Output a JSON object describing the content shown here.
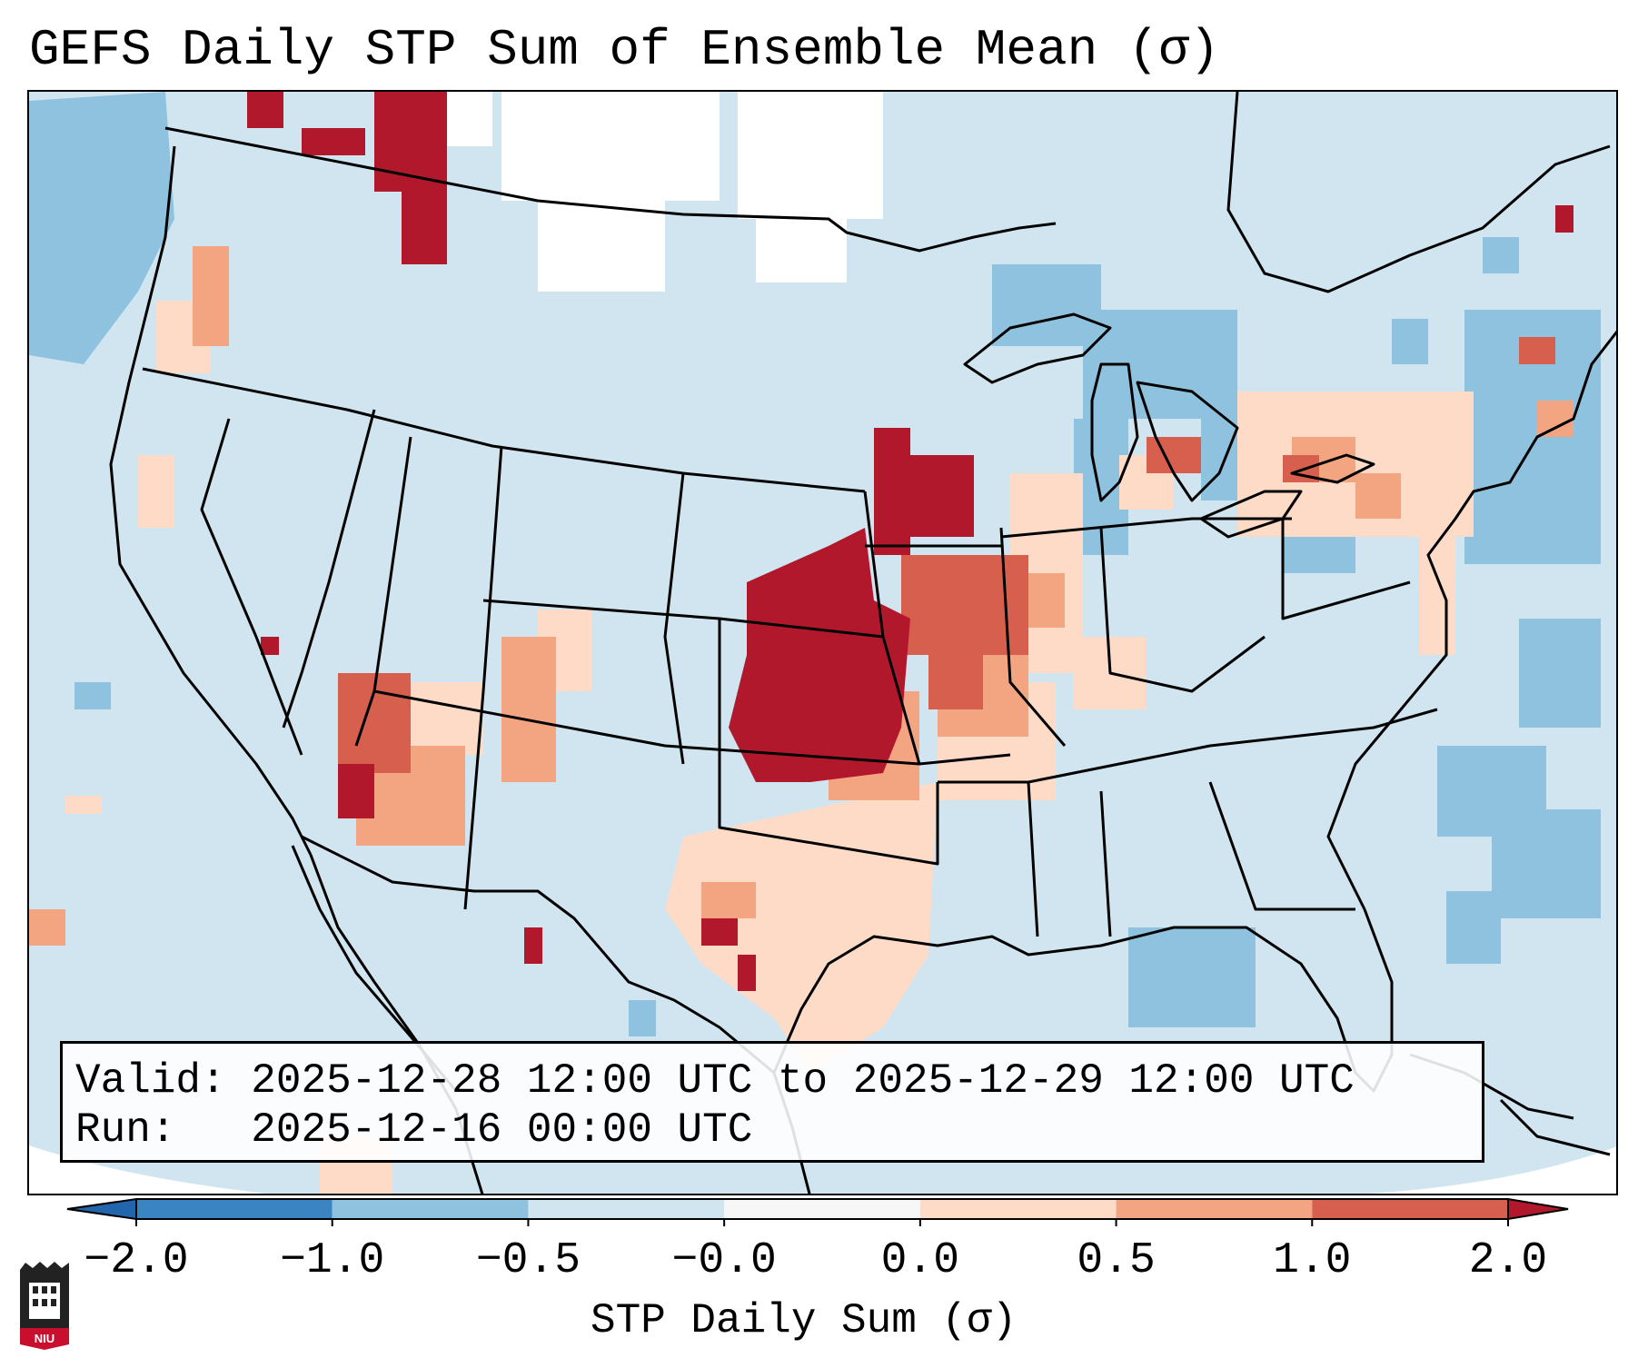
{
  "title": "GEFS Daily STP Sum of Ensemble Mean (σ)",
  "info_box": {
    "valid_label": "Valid:",
    "valid_value": "2025-12-28 12:00 UTC to 2025-12-29 12:00 UTC",
    "run_label": "Run:",
    "run_value": "2025-12-16 00:00 UTC"
  },
  "colorbar": {
    "label": "STP Daily Sum (σ)",
    "ticks": [
      "−2.0",
      "−1.0",
      "−0.5",
      "−0.0",
      "0.0",
      "0.5",
      "1.0",
      "2.0"
    ],
    "colors": [
      "#3a85c1",
      "#8fc2de",
      "#d1e5f0",
      "#f7f7f7",
      "#fddbc7",
      "#f3a582",
      "#d6604d",
      "#b2182b"
    ],
    "under_color": "#2166ac",
    "over_color": "#b2182b"
  },
  "map": {
    "region": "Continental United States",
    "background_color": "#d1e5f0",
    "land_outline_color": "#000000"
  },
  "logo": {
    "text": "NIU"
  }
}
